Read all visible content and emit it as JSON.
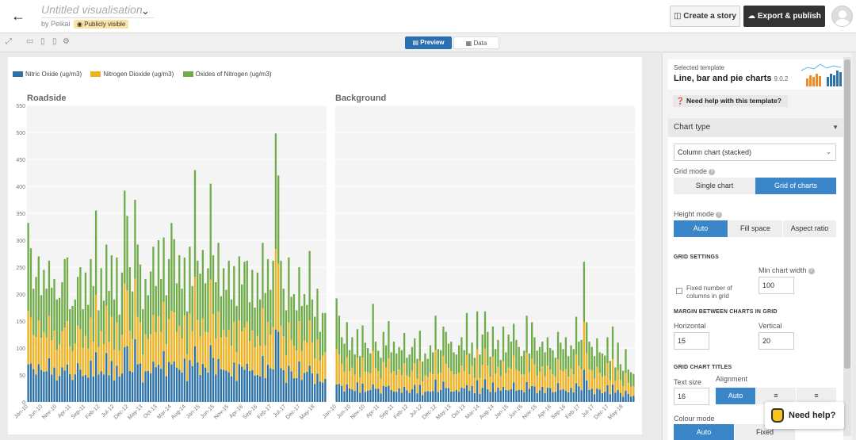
{
  "header": {
    "title": "Untitled visualisation",
    "byline": "by Peikai",
    "badge": "Publicly visible",
    "story_button": "Create a story",
    "export_button": "Export & publish"
  },
  "viewbar": {
    "tabs": [
      {
        "label": "Preview",
        "active": true
      },
      {
        "label": "Data",
        "active": false
      }
    ]
  },
  "sidebar": {
    "template_label": "Selected template",
    "template_name": "Line, bar and pie charts",
    "template_version": "9.0.2",
    "help_template": "Need help with this template?",
    "section_title": "Chart type",
    "chart_type_value": "Column chart (stacked)",
    "grid_mode_label": "Grid mode",
    "grid_mode_options": [
      "Single chart",
      "Grid of charts"
    ],
    "grid_mode_selected": "Grid of charts",
    "height_mode_label": "Height mode",
    "height_mode_options": [
      "Auto",
      "Fill space",
      "Aspect ratio"
    ],
    "height_mode_selected": "Auto",
    "grid_settings_label": "GRID SETTINGS",
    "min_chart_width_label": "Min chart width",
    "fixed_columns_label": "Fixed number of columns in grid",
    "min_chart_width_value": "100",
    "margin_label": "MARGIN BETWEEN CHARTS IN GRID",
    "horizontal_label": "Horizontal",
    "vertical_label": "Vertical",
    "horizontal_value": "15",
    "vertical_value": "20",
    "grid_titles_label": "GRID CHART TITLES",
    "text_size_label": "Text size",
    "alignment_label": "Alignment",
    "text_size_value": "16",
    "alignment_options": [
      "Auto",
      "left-align",
      "center-align"
    ],
    "alignment_selected": "Auto",
    "colour_mode_label": "Colour mode",
    "colour_mode_options": [
      "Auto",
      "Fixed"
    ],
    "colour_mode_selected": "Auto"
  },
  "need_help": "Need help?",
  "colors": {
    "accent": "#3a86c8",
    "no": "#2b72a8",
    "no2": "#eeb31f",
    "nox": "#6fac48"
  },
  "chart_data": {
    "type": "bar",
    "stacked": true,
    "legend": [
      "Nitric Oxide (ug/m3)",
      "Nitrogen Dioxide (ug/m3)",
      "Oxides of Nitrogen (ug/m3)"
    ],
    "ylim": [
      0,
      550
    ],
    "yticks": [
      0,
      50,
      100,
      150,
      200,
      250,
      300,
      350,
      400,
      450,
      500,
      550
    ],
    "xtick_labels": [
      "Jan-10",
      "Jun-10",
      "Nov-10",
      "Apr-11",
      "Sep-11",
      "Feb-12",
      "Jul-12",
      "Dec-12",
      "May-13",
      "Oct-13",
      "Mar-14",
      "Aug-14",
      "Jan-15",
      "Jun-15",
      "Nov-15",
      "Apr-16",
      "Sep-16",
      "Feb-17",
      "Jul-17",
      "Dec-17",
      "May-18"
    ],
    "panels": [
      {
        "title": "Roadside",
        "totals": [
          332,
          285,
          210,
          232,
          270,
          198,
          245,
          210,
          262,
          212,
          228,
          190,
          193,
          222,
          265,
          268,
          172,
          178,
          190,
          232,
          250,
          172,
          240,
          180,
          265,
          215,
          355,
          170,
          248,
          188,
          292,
          206,
          272,
          190,
          268,
          162,
          240,
          392,
          345,
          250,
          205,
          375,
          292,
          255,
          172,
          228,
          198,
          242,
          288,
          215,
          300,
          228,
          305,
          198,
          265,
          332,
          302,
          220,
          272,
          210,
          268,
          168,
          288,
          215,
          430,
          262,
          238,
          282,
          220,
          248,
          405,
          272,
          222,
          295,
          196,
          248,
          208,
          262,
          190,
          252,
          178,
          270,
          218,
          260,
          262,
          185,
          245,
          175,
          240,
          190,
          295,
          202,
          265,
          208,
          262,
          498,
          420,
          262,
          210,
          170,
          268,
          195,
          200,
          170,
          250,
          178,
          200,
          180,
          280,
          190,
          158,
          210,
          130,
          165,
          165
        ],
        "no2_frac": 0.3,
        "no_frac": 0.26
      },
      {
        "title": "Background",
        "totals": [
          192,
          160,
          120,
          108,
          148,
          96,
          120,
          88,
          135,
          85,
          142,
          110,
          100,
          90,
          182,
          112,
          95,
          82,
          130,
          105,
          150,
          92,
          112,
          90,
          102,
          96,
          128,
          82,
          88,
          102,
          118,
          80,
          132,
          75,
          90,
          80,
          105,
          92,
          160,
          98,
          96,
          140,
          130,
          108,
          112,
          92,
          88,
          105,
          120,
          96,
          165,
          90,
          110,
          82,
          168,
          88,
          125,
          168,
          130,
          84,
          140,
          98,
          115,
          78,
          140,
          92,
          125,
          112,
          145,
          115,
          102,
          85,
          95,
          160,
          90,
          148,
          120,
          95,
          102,
          112,
          92,
          120,
          100,
          96,
          82,
          130,
          110,
          98,
          120,
          85,
          105,
          98,
          158,
          112,
          115,
          260,
          148,
          112,
          102,
          85,
          118,
          92,
          90,
          86,
          120,
          76,
          140,
          64,
          110,
          70,
          58,
          98,
          60,
          55,
          52
        ],
        "no2_frac": 0.34,
        "no_frac": 0.22
      }
    ]
  }
}
